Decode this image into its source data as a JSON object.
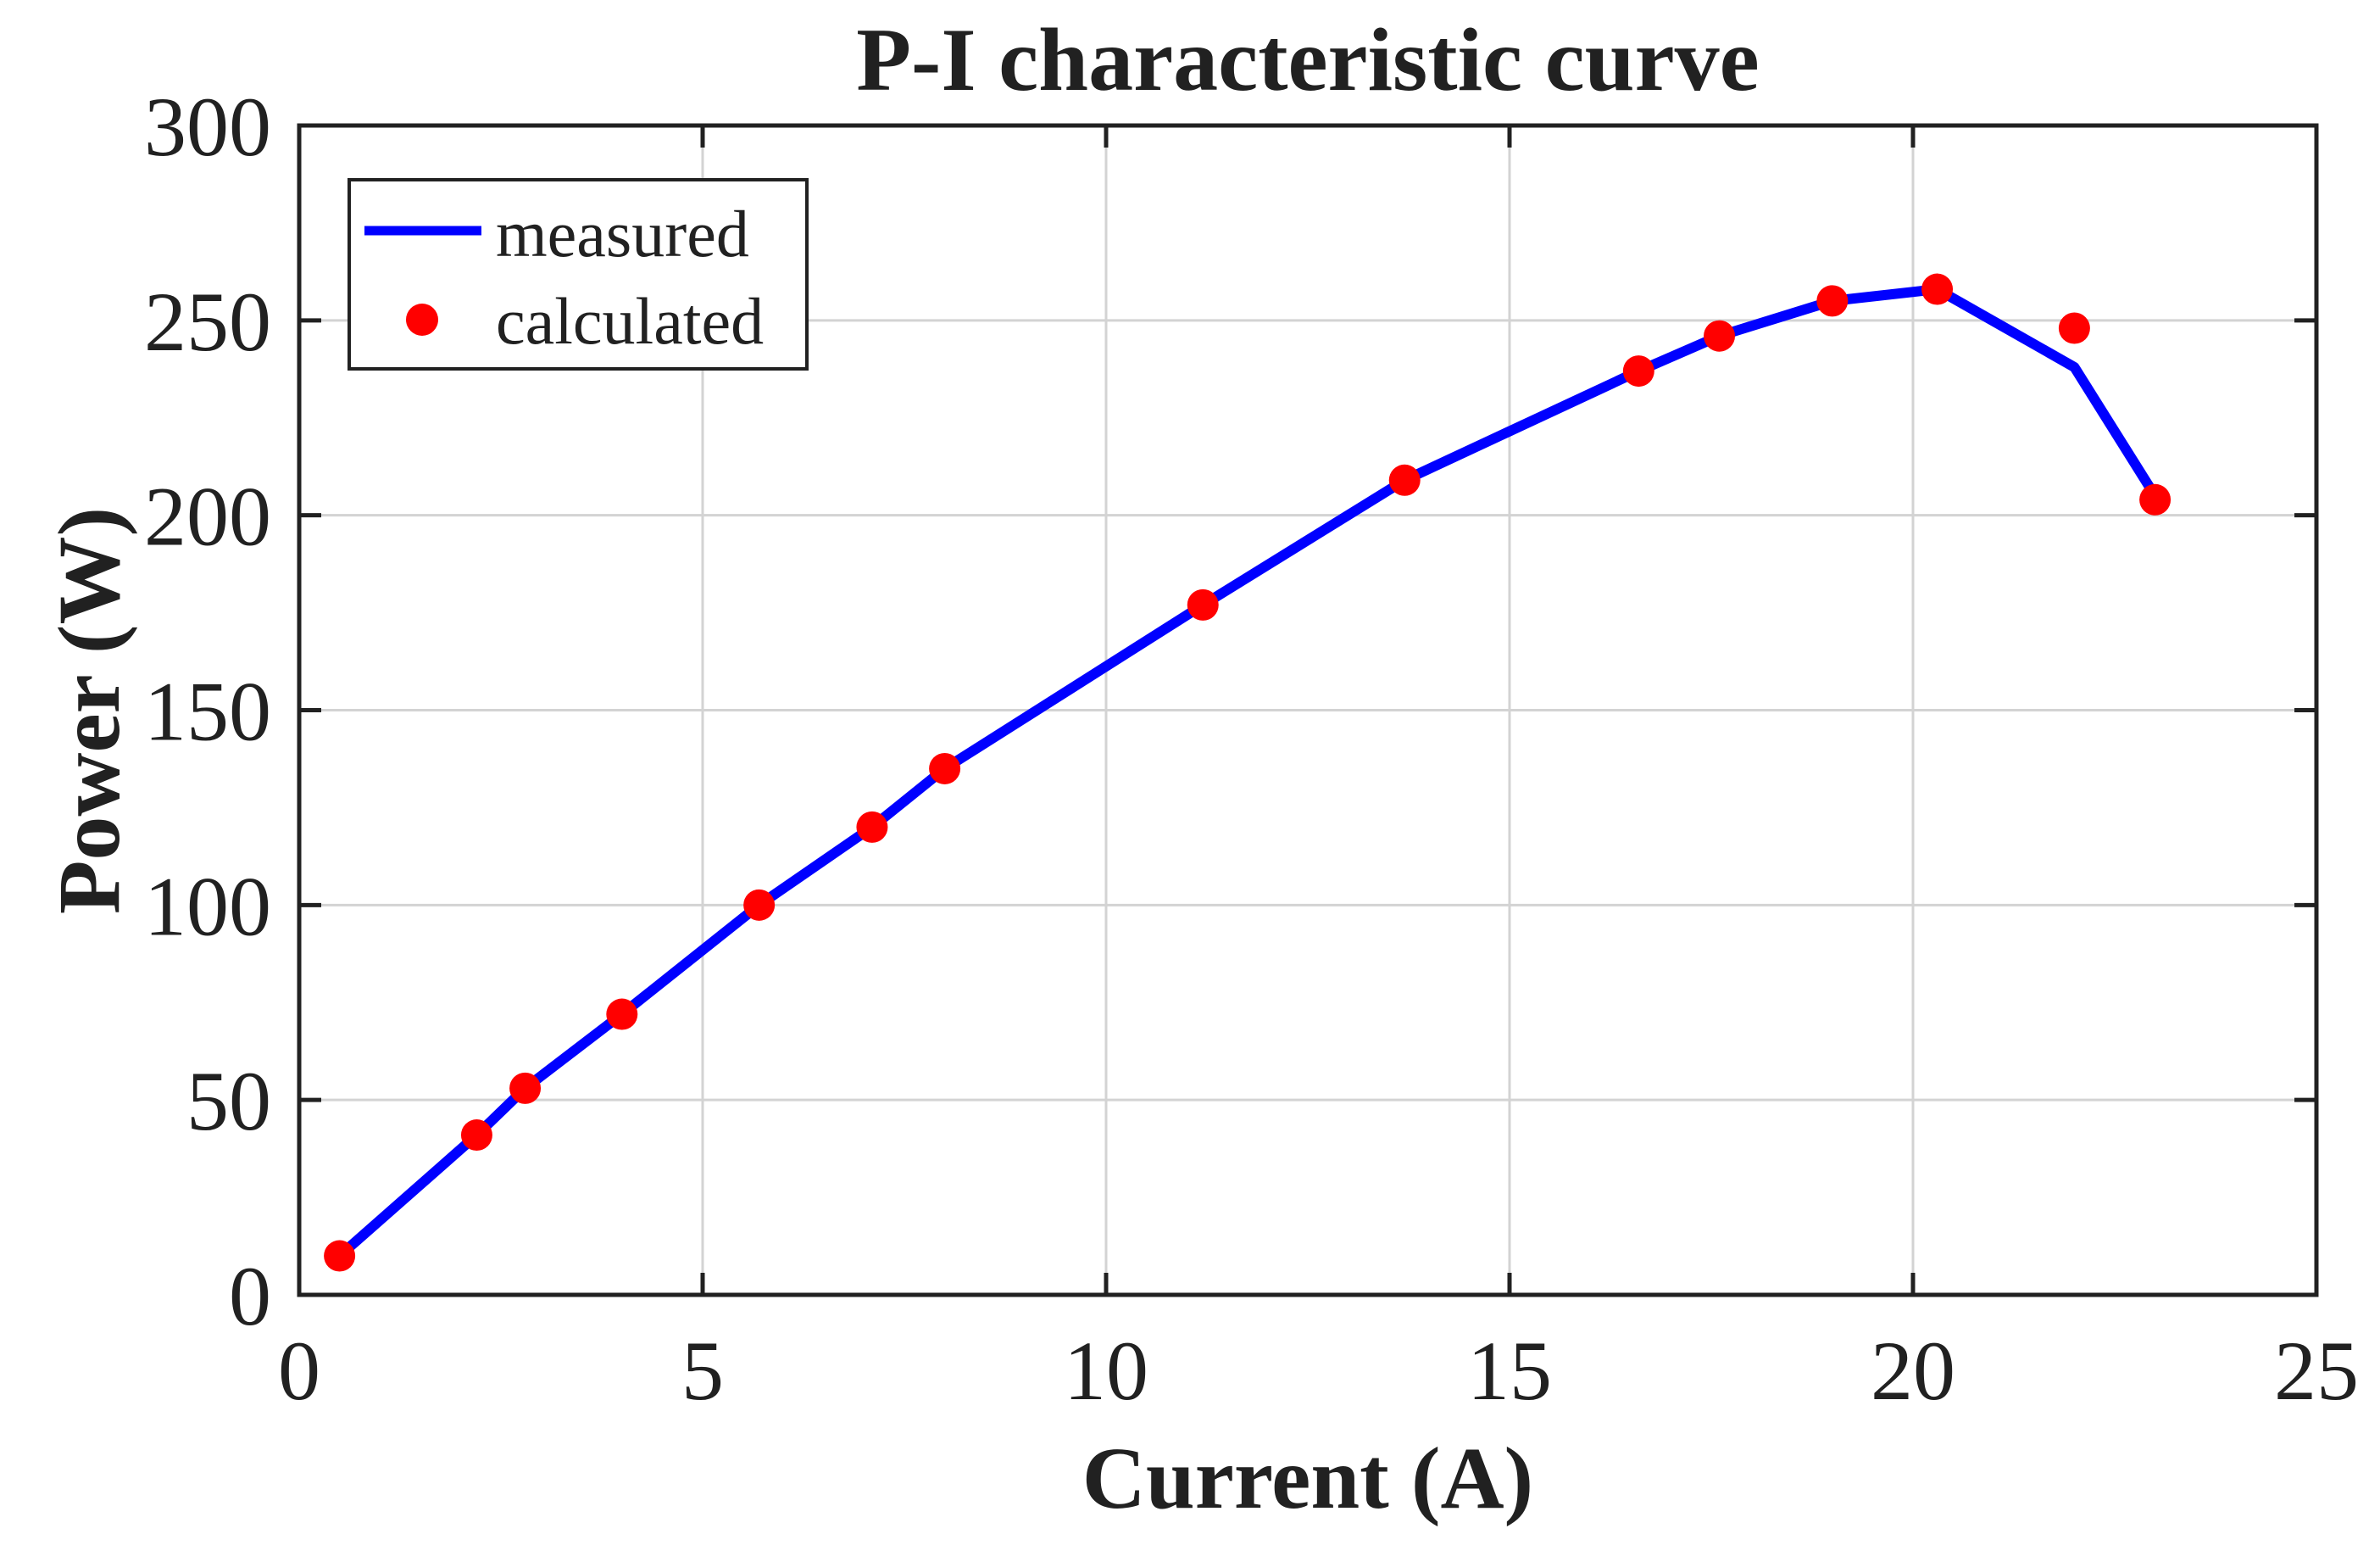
{
  "figure": {
    "title": "P-I characteristic curve",
    "xlabel": "Current (A)",
    "ylabel": "Power (W)"
  },
  "legend": {
    "position": "top-left",
    "items": [
      {
        "label": "measured",
        "marker": "line-icon",
        "color": "#0000ff"
      },
      {
        "label": "calculated",
        "marker": "dot-icon",
        "color": "#ff0000"
      }
    ]
  },
  "chart_data": {
    "type": "line",
    "title": "P-I characteristic curve",
    "xlabel": "Current (A)",
    "ylabel": "Power (W)",
    "xlim": [
      0,
      25
    ],
    "ylim": [
      0,
      300
    ],
    "xticks": [
      0,
      5,
      10,
      15,
      20,
      25
    ],
    "yticks": [
      0,
      50,
      100,
      150,
      200,
      250,
      300
    ],
    "grid": true,
    "legend_position": "top-left",
    "x": [
      0.5,
      2.2,
      2.8,
      4.0,
      5.7,
      7.1,
      8.0,
      11.2,
      13.7,
      16.6,
      17.6,
      19.0,
      20.3,
      22.0,
      23.0
    ],
    "series": [
      {
        "name": "measured",
        "style": "line",
        "color": "#0000ff",
        "values": [
          10,
          41,
          53,
          72,
          100,
          120,
          135,
          177,
          209,
          237,
          246,
          255,
          258,
          238,
          205
        ]
      },
      {
        "name": "calculated",
        "style": "scatter",
        "color": "#ff0000",
        "values": [
          10,
          41,
          53,
          72,
          100,
          120,
          135,
          177,
          209,
          237,
          246,
          255,
          258,
          248,
          204
        ]
      }
    ],
    "colors": {
      "axis": "#212121",
      "grid": "#d3d3d3",
      "background": "#ffffff",
      "measured": "#0000ff",
      "calculated": "#ff0000"
    }
  }
}
